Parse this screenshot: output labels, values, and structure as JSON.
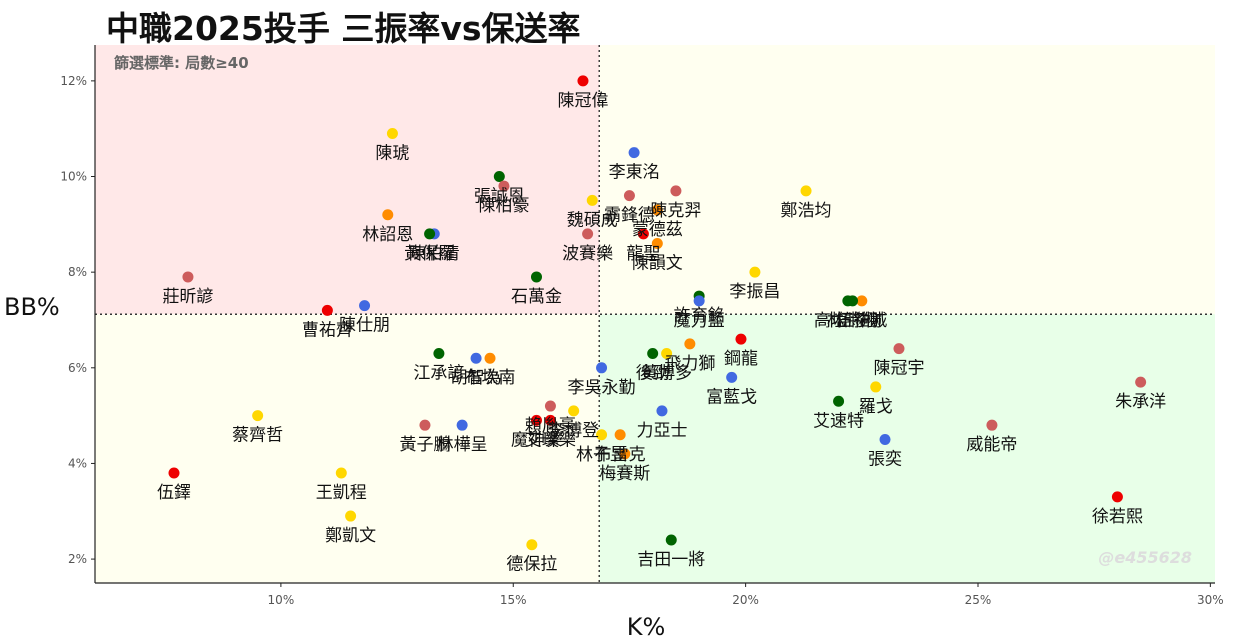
{
  "chart_data": {
    "type": "scatter",
    "title": "中職2025投手 三振率vs保送率",
    "subtitle": "篩選標準: 局數≥40",
    "xlabel": "K%",
    "ylabel": "BB%",
    "watermark": "@e455628",
    "xlim": [
      6.0,
      30.1
    ],
    "ylim": [
      1.5,
      12.75
    ],
    "xticks": [
      10,
      15,
      20,
      25,
      30
    ],
    "yticks": [
      2,
      4,
      6,
      8,
      10,
      12
    ],
    "xtick_labels": [
      "10%",
      "15%",
      "20%",
      "25%",
      "30%"
    ],
    "ytick_labels": [
      "2%",
      "4%",
      "6%",
      "8%",
      "10%",
      "12%"
    ],
    "x_reference": 16.85,
    "y_reference": 7.12,
    "grid": false,
    "quadrant_colors": {
      "top_left": "#ffe8e8",
      "top_right": "#fffff0",
      "bottom_left": "#fffff0",
      "bottom_right": "#e8ffe8"
    },
    "team_colors": {
      "red": "#ee0000",
      "yellow": "#ffd700",
      "green": "#006400",
      "blue": "#4169e1",
      "orange": "#ff8c00",
      "rose": "#cd5c5c"
    },
    "points": [
      {
        "name": "陳冠偉",
        "x": 16.5,
        "y": 12.0,
        "color": "red"
      },
      {
        "name": "陳琥",
        "x": 12.4,
        "y": 10.9,
        "color": "yellow"
      },
      {
        "name": "李東洺",
        "x": 17.6,
        "y": 10.5,
        "color": "blue"
      },
      {
        "name": "張誠恩",
        "x": 14.7,
        "y": 10.0,
        "color": "green"
      },
      {
        "name": "陳柏豪",
        "x": 14.8,
        "y": 9.8,
        "color": "rose"
      },
      {
        "name": "魏碩成",
        "x": 16.7,
        "y": 9.5,
        "color": "yellow"
      },
      {
        "name": "霸鋒德",
        "x": 17.5,
        "y": 9.6,
        "color": "rose"
      },
      {
        "name": "陳克羿",
        "x": 18.5,
        "y": 9.7,
        "color": "rose"
      },
      {
        "name": "鄭浩均",
        "x": 21.3,
        "y": 9.7,
        "color": "yellow"
      },
      {
        "name": "蒙德茲",
        "x": 18.1,
        "y": 9.3,
        "color": "orange"
      },
      {
        "name": "林詔恩",
        "x": 12.3,
        "y": 9.2,
        "color": "orange"
      },
      {
        "name": "陳柏清",
        "x": 13.3,
        "y": 8.8,
        "color": "blue"
      },
      {
        "name": "黃保羅",
        "x": 13.2,
        "y": 8.8,
        "color": "green"
      },
      {
        "name": "龍聖",
        "x": 17.8,
        "y": 8.8,
        "color": "red"
      },
      {
        "name": "波賽樂",
        "x": 16.6,
        "y": 8.8,
        "color": "rose"
      },
      {
        "name": "陳韻文",
        "x": 18.1,
        "y": 8.6,
        "color": "orange"
      },
      {
        "name": "莊昕諺",
        "x": 8.0,
        "y": 7.9,
        "color": "rose"
      },
      {
        "name": "石萬金",
        "x": 15.5,
        "y": 7.9,
        "color": "green"
      },
      {
        "name": "許育銘",
        "x": 19.0,
        "y": 7.5,
        "color": "green"
      },
      {
        "name": "魔力藍",
        "x": 19.0,
        "y": 7.4,
        "color": "blue"
      },
      {
        "name": "李振昌",
        "x": 20.2,
        "y": 8.0,
        "color": "yellow"
      },
      {
        "name": "陳仕朋",
        "x": 11.8,
        "y": 7.3,
        "color": "blue"
      },
      {
        "name": "曹祐齊",
        "x": 11.0,
        "y": 7.2,
        "color": "red"
      },
      {
        "name": "伍祐城",
        "x": 22.5,
        "y": 7.4,
        "color": "orange"
      },
      {
        "name": "林詩翔",
        "x": 22.3,
        "y": 7.4,
        "color": "green"
      },
      {
        "name": "高塩將樹",
        "x": 22.2,
        "y": 7.4,
        "color": "green"
      },
      {
        "name": "江承諺",
        "x": 13.4,
        "y": 6.3,
        "color": "green"
      },
      {
        "name": "布坎南",
        "x": 14.5,
        "y": 6.2,
        "color": "orange"
      },
      {
        "name": "胡智為",
        "x": 14.2,
        "y": 6.2,
        "color": "blue"
      },
      {
        "name": "李吳永勤",
        "x": 16.9,
        "y": 6.0,
        "color": "blue"
      },
      {
        "name": "後勁",
        "x": 18.0,
        "y": 6.3,
        "color": "green"
      },
      {
        "name": "飛力獅",
        "x": 18.8,
        "y": 6.5,
        "color": "orange"
      },
      {
        "name": "黃博多",
        "x": 18.3,
        "y": 6.3,
        "color": "yellow"
      },
      {
        "name": "鋼龍",
        "x": 19.9,
        "y": 6.6,
        "color": "red"
      },
      {
        "name": "陳冠宇",
        "x": 23.3,
        "y": 6.4,
        "color": "rose"
      },
      {
        "name": "富藍戈",
        "x": 19.7,
        "y": 5.8,
        "color": "blue"
      },
      {
        "name": "羅戈",
        "x": 22.8,
        "y": 5.6,
        "color": "yellow"
      },
      {
        "name": "朱承洋",
        "x": 28.5,
        "y": 5.7,
        "color": "rose"
      },
      {
        "name": "賴胤豪",
        "x": 15.8,
        "y": 5.2,
        "color": "rose"
      },
      {
        "name": "魔神樂",
        "x": 15.5,
        "y": 4.9,
        "color": "red"
      },
      {
        "name": "李博登",
        "x": 16.3,
        "y": 5.1,
        "color": "yellow"
      },
      {
        "name": "力亞士",
        "x": 18.2,
        "y": 5.1,
        "color": "blue"
      },
      {
        "name": "艾速特",
        "x": 22.0,
        "y": 5.3,
        "color": "green"
      },
      {
        "name": "蔡齊哲",
        "x": 9.5,
        "y": 5.0,
        "color": "yellow"
      },
      {
        "name": "黃子鵬",
        "x": 13.1,
        "y": 4.8,
        "color": "rose"
      },
      {
        "name": "林樺呈",
        "x": 13.9,
        "y": 4.8,
        "color": "blue"
      },
      {
        "name": "艾璞樂",
        "x": 15.8,
        "y": 4.9,
        "color": "red"
      },
      {
        "name": "林子昱",
        "x": 16.9,
        "y": 4.6,
        "color": "yellow"
      },
      {
        "name": "布雷克",
        "x": 17.3,
        "y": 4.6,
        "color": "orange"
      },
      {
        "name": "張奕",
        "x": 23.0,
        "y": 4.5,
        "color": "blue"
      },
      {
        "name": "威能帝",
        "x": 25.3,
        "y": 4.8,
        "color": "rose"
      },
      {
        "name": "梅賽斯",
        "x": 17.4,
        "y": 4.2,
        "color": "orange"
      },
      {
        "name": "伍鐸",
        "x": 7.7,
        "y": 3.8,
        "color": "red"
      },
      {
        "name": "王凱程",
        "x": 11.3,
        "y": 3.8,
        "color": "yellow"
      },
      {
        "name": "鄭凱文",
        "x": 11.5,
        "y": 2.9,
        "color": "yellow"
      },
      {
        "name": "徐若熙",
        "x": 28.0,
        "y": 3.3,
        "color": "red"
      },
      {
        "name": "德保拉",
        "x": 15.4,
        "y": 2.3,
        "color": "yellow"
      },
      {
        "name": "吉田一將",
        "x": 18.4,
        "y": 2.4,
        "color": "green"
      }
    ]
  }
}
